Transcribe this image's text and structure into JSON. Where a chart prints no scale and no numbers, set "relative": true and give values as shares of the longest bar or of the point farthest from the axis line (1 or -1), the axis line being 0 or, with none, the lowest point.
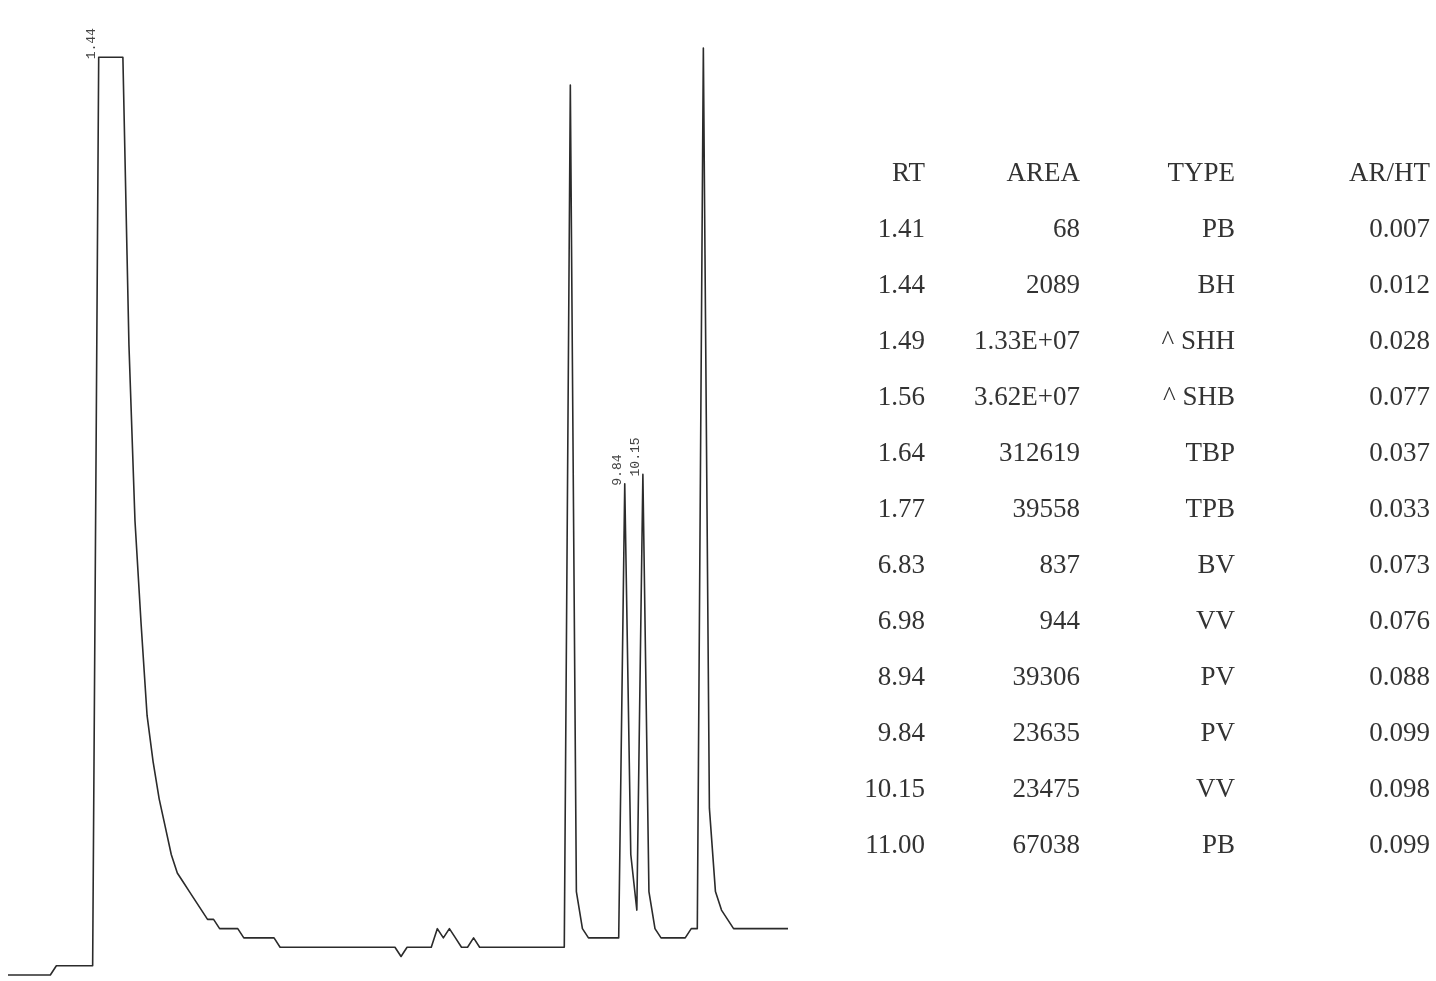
{
  "chart_data": [
    {
      "type": "line",
      "relative": true,
      "color": "#2b2b2b",
      "tick_labels": false,
      "grid": false,
      "marker": "none",
      "categories": [
        null,
        null,
        null,
        null,
        null,
        null,
        null,
        null,
        null,
        null,
        null,
        null,
        null,
        null,
        null,
        null,
        null,
        null,
        null,
        null,
        null,
        null,
        null,
        null,
        null,
        null,
        null,
        null,
        null,
        null,
        null,
        null,
        null,
        null,
        null,
        null,
        null,
        null,
        null,
        null,
        null,
        null,
        null,
        null,
        null,
        null,
        null,
        null,
        null,
        null,
        null,
        null,
        null,
        null,
        null,
        null,
        null,
        null,
        null,
        null,
        null,
        null,
        null,
        null,
        null,
        null,
        null,
        null,
        null,
        null,
        null,
        null,
        null,
        null,
        null,
        null,
        null,
        null,
        null,
        null,
        null,
        null,
        null,
        null,
        null,
        null,
        null,
        null,
        null,
        null,
        null,
        null,
        null,
        null,
        null,
        null,
        null,
        null,
        null,
        null,
        null,
        null,
        null,
        null,
        null,
        null,
        null,
        null,
        null,
        null,
        null,
        null,
        null,
        null,
        null,
        null,
        null,
        null,
        null,
        null,
        null,
        null,
        null,
        null,
        null,
        null,
        null,
        null,
        null,
        null
      ],
      "values": [
        0,
        0,
        0,
        0,
        0,
        0,
        0,
        0,
        0.01,
        0.01,
        0.01,
        0.01,
        0.01,
        0.01,
        0.01,
        0.99,
        0.99,
        0.99,
        0.99,
        0.99,
        0.68,
        0.49,
        0.38,
        0.28,
        0.23,
        0.19,
        0.16,
        0.13,
        0.11,
        0.1,
        0.09,
        0.08,
        0.07,
        0.06,
        0.06,
        0.05,
        0.05,
        0.05,
        0.05,
        0.04,
        0.04,
        0.04,
        0.04,
        0.04,
        0.04,
        0.03,
        0.03,
        0.03,
        0.03,
        0.03,
        0.03,
        0.03,
        0.03,
        0.03,
        0.03,
        0.03,
        0.03,
        0.03,
        0.03,
        0.03,
        0.03,
        0.03,
        0.03,
        0.03,
        0.03,
        0.02,
        0.03,
        0.03,
        0.03,
        0.03,
        0.03,
        0.05,
        0.04,
        0.05,
        0.04,
        0.03,
        0.03,
        0.04,
        0.03,
        0.03,
        0.03,
        0.03,
        0.03,
        0.03,
        0.03,
        0.03,
        0.03,
        0.03,
        0.03,
        0.03,
        0.03,
        0.03,
        0.03,
        0.96,
        0.09,
        0.05,
        0.04,
        0.04,
        0.04,
        0.04,
        0.04,
        0.04,
        0.53,
        0.13,
        0.07,
        0.54,
        0.09,
        0.05,
        0.04,
        0.04,
        0.04,
        0.04,
        0.04,
        0.05,
        0.05,
        1,
        0.18,
        0.09,
        0.07,
        0.06,
        0.05,
        0.05,
        0.05,
        0.05,
        0.05,
        0.05,
        0.05,
        0.05,
        0.05,
        0.05
      ],
      "annotations": [
        "1.44",
        "9.84",
        "10.15"
      ]
    },
    {
      "type": "other",
      "annotations": [
        "RT",
        "AREA",
        "TYPE",
        "AR/HT",
        "1.41",
        "68",
        "PB",
        "0.007",
        "1.44",
        "2089",
        "BH",
        "0.012",
        "1.49",
        "1.33E+07",
        "^ SHH",
        "0.028",
        "1.56",
        "3.62E+07",
        "^ SHB",
        "0.077",
        "1.64",
        "312619",
        "TBP",
        "0.037",
        "1.77",
        "39558",
        "TPB",
        "0.033",
        "6.83",
        "837",
        "BV",
        "0.073",
        "6.98",
        "944",
        "VV",
        "0.076",
        "8.94",
        "39306",
        "PV",
        "0.088",
        "9.84",
        "23635",
        "PV",
        "0.099",
        "10.15",
        "23475",
        "VV",
        "0.098",
        "11.00",
        "67038",
        "PB",
        "0.099"
      ]
    }
  ]
}
